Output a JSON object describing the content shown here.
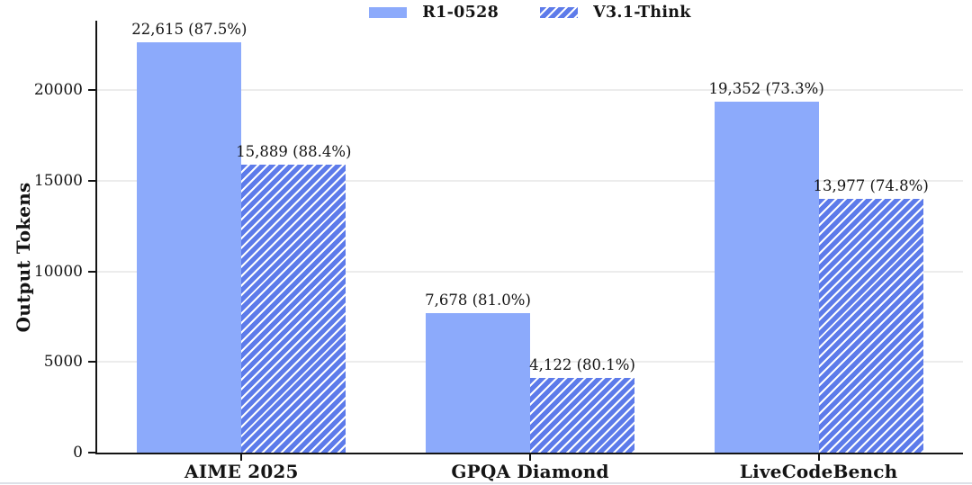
{
  "chart_data": {
    "type": "bar",
    "title": "",
    "categories": [
      "AIME 2025",
      "GPQA Diamond",
      "LiveCodeBench"
    ],
    "series": [
      {
        "name": "R1-0528",
        "pattern": "solid",
        "color": "#8caafb",
        "values": [
          22615,
          7678,
          19352
        ],
        "bar_labels": [
          "22,615 (87.5%)",
          "7,678 (81.0%)",
          "19,352 (73.3%)"
        ]
      },
      {
        "name": "V3.1-Think",
        "pattern": "hatch-diagonal",
        "color": "#5d7bea",
        "hatch_color": "#ffffff",
        "values": [
          15889,
          4122,
          13977
        ],
        "bar_labels": [
          "15,889 (88.4%)",
          "4,122 (80.1%)",
          "13,977 (74.8%)"
        ]
      }
    ],
    "xlabel": "",
    "ylabel": "Output Tokens",
    "yticks": [
      0,
      5000,
      10000,
      15000,
      20000
    ],
    "ytick_labels": [
      "0",
      "5000",
      "10000",
      "15000",
      "20000"
    ],
    "ylim": [
      0,
      23820
    ],
    "grid": "horizontal-light",
    "legend_position": "top-center",
    "axis_color": "#141414",
    "grid_color": "#ececec",
    "text_color": "#141414"
  }
}
